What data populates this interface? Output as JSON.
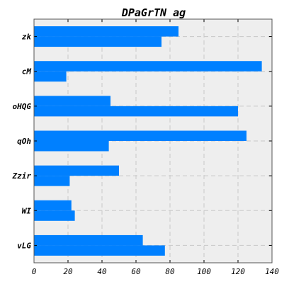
{
  "chart_data": {
    "type": "bar",
    "orientation": "horizontal",
    "title": "DPaGrTN ag",
    "xlabel": "",
    "ylabel": "",
    "categories": [
      "zk",
      "cM",
      "oHQG",
      "qOh",
      "Zzir",
      "WI",
      "vLG"
    ],
    "series": [
      {
        "values": [
          85,
          134,
          45,
          125,
          50,
          22,
          64
        ]
      },
      {
        "values": [
          75,
          19,
          120,
          44,
          21,
          24,
          77
        ]
      }
    ],
    "xlim": [
      0,
      140
    ],
    "xticks": [
      0,
      20,
      40,
      60,
      80,
      100,
      120,
      140
    ],
    "grid": true,
    "colors": {
      "bar": "#0080ff",
      "plot_bg": "#eeeeee",
      "grid": "#c8c8c8"
    }
  }
}
